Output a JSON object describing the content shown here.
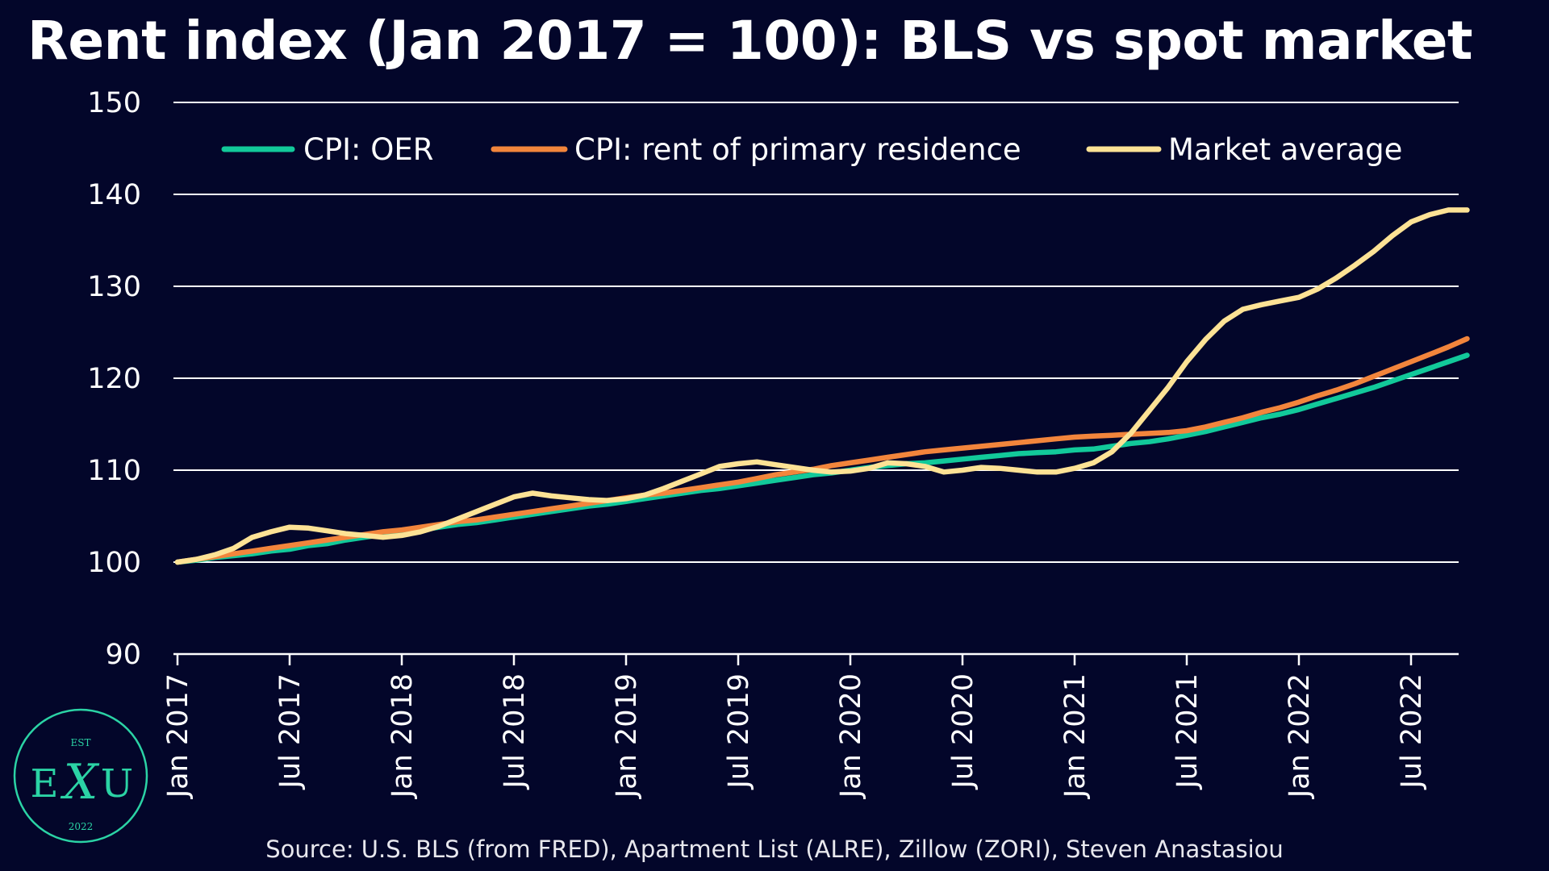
{
  "colors": {
    "background": "#03062a",
    "text": "#ffffff",
    "grid": "#ffffff",
    "oer": "#12c99a",
    "rent": "#f2853c",
    "market": "#fde295",
    "logo": "#2bd3a5"
  },
  "source": "Source: U.S. BLS (from FRED), Apartment List (ALRE), Zillow (ZORI), Steven Anastasiou",
  "logo": {
    "top": "EST",
    "left": "E",
    "center": "X",
    "right": "U",
    "bottom": "2022"
  },
  "chart_data": {
    "type": "line",
    "title": "Rent index (Jan 2017 = 100): BLS vs spot market",
    "ylim": [
      90,
      150
    ],
    "yticks": [
      90,
      100,
      110,
      120,
      130,
      140,
      150
    ],
    "grid": true,
    "legend_position": "top",
    "x_tick_labels": [
      "Jan 2017",
      "Jul 2017",
      "Jan 2018",
      "Jul 2018",
      "Jan 2019",
      "Jul 2019",
      "Jan 2020",
      "Jul 2020",
      "Jan 2021",
      "Jul 2021",
      "Jan 2022",
      "Jul 2022"
    ],
    "x": [
      "2017-01",
      "2017-02",
      "2017-03",
      "2017-04",
      "2017-05",
      "2017-06",
      "2017-07",
      "2017-08",
      "2017-09",
      "2017-10",
      "2017-11",
      "2017-12",
      "2018-01",
      "2018-02",
      "2018-03",
      "2018-04",
      "2018-05",
      "2018-06",
      "2018-07",
      "2018-08",
      "2018-09",
      "2018-10",
      "2018-11",
      "2018-12",
      "2019-01",
      "2019-02",
      "2019-03",
      "2019-04",
      "2019-05",
      "2019-06",
      "2019-07",
      "2019-08",
      "2019-09",
      "2019-10",
      "2019-11",
      "2019-12",
      "2020-01",
      "2020-02",
      "2020-03",
      "2020-04",
      "2020-05",
      "2020-06",
      "2020-07",
      "2020-08",
      "2020-09",
      "2020-10",
      "2020-11",
      "2020-12",
      "2021-01",
      "2021-02",
      "2021-03",
      "2021-04",
      "2021-05",
      "2021-06",
      "2021-07",
      "2021-08",
      "2021-09",
      "2021-10",
      "2021-11",
      "2021-12",
      "2022-01",
      "2022-02",
      "2022-03",
      "2022-04",
      "2022-05",
      "2022-06",
      "2022-07",
      "2022-08",
      "2022-09",
      "2022-10"
    ],
    "series": [
      {
        "name": "CPI: OER",
        "color": "#12c99a",
        "values": [
          100,
          100.2,
          100.5,
          100.7,
          100.9,
          101.2,
          101.4,
          101.8,
          102.0,
          102.4,
          102.7,
          103.0,
          103.2,
          103.5,
          103.8,
          104.1,
          104.3,
          104.6,
          104.9,
          105.2,
          105.5,
          105.8,
          106.1,
          106.3,
          106.6,
          106.9,
          107.2,
          107.5,
          107.8,
          108.0,
          108.3,
          108.6,
          108.9,
          109.2,
          109.5,
          109.7,
          110.0,
          110.3,
          110.5,
          110.7,
          110.8,
          111.0,
          111.2,
          111.4,
          111.6,
          111.8,
          111.9,
          112.0,
          112.2,
          112.3,
          112.6,
          112.9,
          113.1,
          113.4,
          113.8,
          114.2,
          114.7,
          115.2,
          115.7,
          116.1,
          116.6,
          117.2,
          117.8,
          118.4,
          119.0,
          119.7,
          120.4,
          121.1,
          121.8,
          122.5
        ]
      },
      {
        "name": "CPI: rent of primary residence",
        "color": "#f2853c",
        "values": [
          100,
          100.3,
          100.6,
          100.9,
          101.2,
          101.5,
          101.8,
          102.1,
          102.4,
          102.7,
          103.0,
          103.3,
          103.5,
          103.8,
          104.1,
          104.4,
          104.6,
          104.9,
          105.2,
          105.5,
          105.8,
          106.1,
          106.4,
          106.7,
          107.0,
          107.3,
          107.5,
          107.8,
          108.1,
          108.4,
          108.7,
          109.1,
          109.5,
          109.8,
          110.1,
          110.5,
          110.8,
          111.1,
          111.4,
          111.7,
          112.0,
          112.2,
          112.4,
          112.6,
          112.8,
          113.0,
          113.2,
          113.4,
          113.6,
          113.7,
          113.8,
          113.9,
          114.0,
          114.1,
          114.3,
          114.7,
          115.2,
          115.7,
          116.3,
          116.8,
          117.4,
          118.1,
          118.7,
          119.4,
          120.2,
          121.0,
          121.8,
          122.6,
          123.4,
          124.3
        ]
      },
      {
        "name": "Market average",
        "color": "#fde295",
        "values": [
          100,
          100.3,
          100.8,
          101.5,
          102.7,
          103.3,
          103.8,
          103.7,
          103.4,
          103.1,
          102.9,
          102.7,
          102.9,
          103.3,
          103.9,
          104.7,
          105.5,
          106.3,
          107.1,
          107.5,
          107.2,
          107.0,
          106.8,
          106.7,
          106.9,
          107.3,
          108.0,
          108.8,
          109.6,
          110.4,
          110.7,
          110.9,
          110.6,
          110.3,
          110.0,
          109.8,
          109.9,
          110.2,
          110.8,
          110.7,
          110.4,
          109.8,
          110.0,
          110.3,
          110.2,
          110.0,
          109.8,
          109.8,
          110.2,
          110.8,
          112.0,
          114.0,
          116.5,
          119.0,
          121.8,
          124.2,
          126.2,
          127.5,
          128.0,
          128.4,
          128.8,
          129.7,
          130.9,
          132.3,
          133.8,
          135.5,
          137.0,
          137.8,
          138.3,
          138.3
        ]
      }
    ]
  }
}
